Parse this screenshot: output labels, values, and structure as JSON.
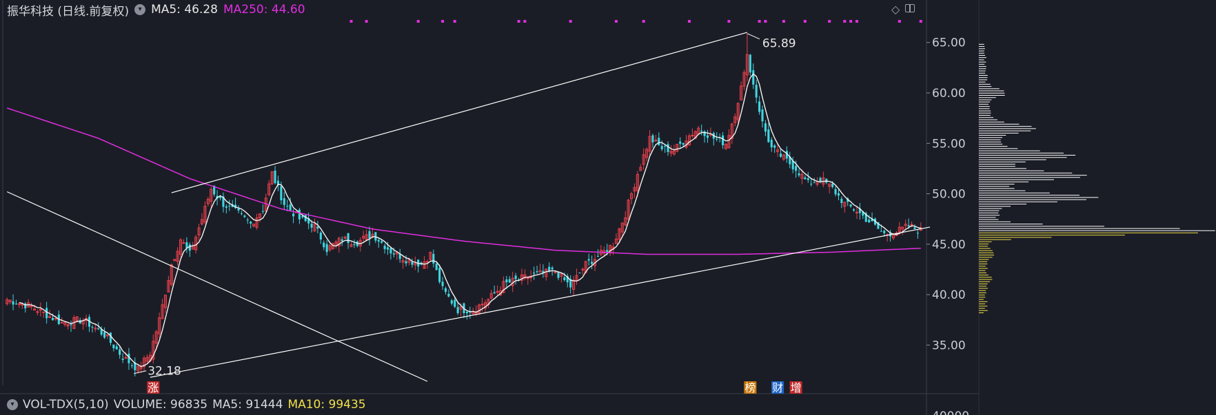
{
  "header": {
    "title": "振华科技 (日线.前复权)",
    "ma5_label": "MA5: 46.28",
    "ma250_label": "MA250: 44.60"
  },
  "volume_bar": {
    "indicator": "VOL-TDX(5,10)",
    "volume_label": "VOLUME: 96835",
    "ma5_label": "MA5: 91444",
    "ma10_label": "MA10: 99435"
  },
  "colors": {
    "up": "#e8404a",
    "down": "#3fd6e0",
    "ma5": "#f2f2f2",
    "ma250": "#e02ee0",
    "trendline": "#ffffff",
    "profile_above": "#ffffff",
    "profile_below": "#f0e14a",
    "badge_bang": "#c8780a",
    "badge_cai": "#1f66c8",
    "badge_zeng": "#c02a2a",
    "badge_zhang": "#c02a2a"
  },
  "icons": [
    "diamond-icon",
    "panel-toggle-icon",
    "collapse-circle-icon"
  ],
  "chart_data": {
    "type": "candlestick",
    "title": "振华科技 (日线.前复权)",
    "y_ticks": [
      65.0,
      60.0,
      55.0,
      50.0,
      45.0,
      40.0,
      35.0
    ],
    "y_tick_labels": [
      "65.00",
      "60.00",
      "55.00",
      "50.00",
      "45.00",
      "40.00",
      "35.00"
    ],
    "y_range": [
      31.0,
      67.3
    ],
    "lower_tick_partial": "40000",
    "annotations": {
      "high": "65.89",
      "low": "32.18"
    },
    "badges": [
      {
        "text": "涨",
        "color_key": "badge_zhang"
      },
      {
        "text": "榜",
        "color_key": "badge_bang"
      },
      {
        "text": "财",
        "color_key": "badge_cai"
      },
      {
        "text": "增",
        "color_key": "badge_zeng"
      }
    ],
    "series": [
      {
        "name": "MA5",
        "value": 46.28
      },
      {
        "name": "MA250",
        "value": 44.6
      }
    ],
    "close_waypoints": [
      [
        0,
        39.5
      ],
      [
        8,
        38.8
      ],
      [
        18,
        37.2
      ],
      [
        25,
        37.5
      ],
      [
        32,
        36.0
      ],
      [
        38,
        33.8
      ],
      [
        43,
        32.6
      ],
      [
        47,
        34.2
      ],
      [
        50,
        37.5
      ],
      [
        54,
        43.0
      ],
      [
        57,
        45.5
      ],
      [
        60,
        44.0
      ],
      [
        64,
        47.5
      ],
      [
        67,
        50.5
      ],
      [
        71,
        49.0
      ],
      [
        76,
        48.0
      ],
      [
        80,
        47.0
      ],
      [
        84,
        48.5
      ],
      [
        87,
        52.0
      ],
      [
        91,
        49.0
      ],
      [
        96,
        47.5
      ],
      [
        101,
        46.8
      ],
      [
        105,
        44.5
      ],
      [
        110,
        45.5
      ],
      [
        115,
        45.2
      ],
      [
        120,
        46.0
      ],
      [
        126,
        44.3
      ],
      [
        131,
        43.5
      ],
      [
        136,
        43.0
      ],
      [
        139,
        44.0
      ],
      [
        143,
        40.5
      ],
      [
        148,
        38.5
      ],
      [
        153,
        38.5
      ],
      [
        158,
        39.5
      ],
      [
        163,
        41.0
      ],
      [
        168,
        41.5
      ],
      [
        174,
        42.0
      ],
      [
        180,
        42.3
      ],
      [
        185,
        40.8
      ],
      [
        190,
        43.0
      ],
      [
        195,
        44.0
      ],
      [
        199,
        45.0
      ],
      [
        203,
        48.0
      ],
      [
        207,
        52.0
      ],
      [
        211,
        55.5
      ],
      [
        215,
        54.5
      ],
      [
        219,
        54.3
      ],
      [
        223,
        55.5
      ],
      [
        227,
        56.5
      ],
      [
        232,
        55.5
      ],
      [
        236,
        55.0
      ],
      [
        239,
        58.0
      ],
      [
        241,
        60.5
      ],
      [
        243,
        63.0
      ],
      [
        245,
        61.0
      ],
      [
        248,
        57.0
      ],
      [
        251,
        54.5
      ],
      [
        255,
        53.5
      ],
      [
        259,
        52.5
      ],
      [
        263,
        51.0
      ],
      [
        267,
        51.5
      ],
      [
        271,
        50.5
      ],
      [
        275,
        49.0
      ],
      [
        279,
        48.3
      ],
      [
        284,
        47.0
      ],
      [
        288,
        46.0
      ],
      [
        292,
        46.2
      ],
      [
        296,
        46.8
      ],
      [
        300,
        46.3
      ]
    ],
    "ma250_waypoints": [
      [
        0,
        58.5
      ],
      [
        30,
        55.5
      ],
      [
        60,
        51.5
      ],
      [
        90,
        48.5
      ],
      [
        120,
        46.5
      ],
      [
        150,
        45.3
      ],
      [
        180,
        44.4
      ],
      [
        210,
        44.0
      ],
      [
        240,
        44.0
      ],
      [
        270,
        44.2
      ],
      [
        300,
        44.6
      ]
    ],
    "trendlines": [
      {
        "from": [
          54,
          50.1
        ],
        "to": [
          243,
          66.0
        ]
      },
      {
        "from": [
          47,
          31.8
        ],
        "to": [
          303,
          46.7
        ]
      },
      {
        "from": [
          0,
          50.2
        ],
        "to": [
          138,
          31.4
        ]
      }
    ],
    "volume_profile": {
      "current_price": 46.28,
      "peaks": [
        {
          "price": 46.3,
          "strength": 1.0
        },
        {
          "price": 49.6,
          "strength": 0.4
        },
        {
          "price": 51.8,
          "strength": 0.33
        },
        {
          "price": 53.8,
          "strength": 0.3
        },
        {
          "price": 56.5,
          "strength": 0.17
        },
        {
          "price": 60.0,
          "strength": 0.08
        },
        {
          "price": 44.0,
          "strength": 0.04
        },
        {
          "price": 41.5,
          "strength": 0.03
        }
      ],
      "range": [
        38.2,
        65.0
      ]
    },
    "top_markers_count": 22
  }
}
